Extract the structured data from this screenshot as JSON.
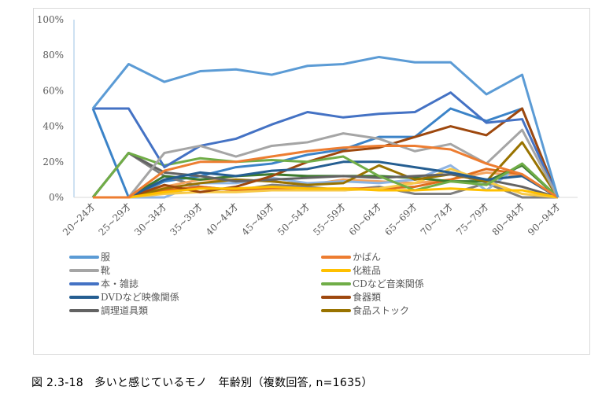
{
  "caption": "図 2.3-18　多いと感じているモノ　年齢別（複数回答, n=1635）",
  "chart_data": {
    "type": "line",
    "title": "",
    "xlabel": "",
    "ylabel": "",
    "ylim": [
      0,
      100
    ],
    "yticks": [
      "0%",
      "20%",
      "40%",
      "60%",
      "80%",
      "100%"
    ],
    "grid": false,
    "legend_position": "bottom",
    "categories": [
      "20~24才",
      "25~29才",
      "30~34才",
      "35~39才",
      "40~44才",
      "45~49才",
      "50~54才",
      "55~59才",
      "60~64才",
      "65~69才",
      "70~74才",
      "75~79才",
      "80~84才",
      "90~94才"
    ],
    "series": [
      {
        "name": "服",
        "color": "#5B9BD5",
        "in_legend": true,
        "values": [
          50,
          75,
          65,
          71,
          72,
          69,
          74,
          75,
          79,
          76,
          76,
          58,
          69,
          0
        ]
      },
      {
        "name": "かばん",
        "color": "#ED7D31",
        "in_legend": true,
        "values": [
          0,
          0,
          15,
          20,
          20,
          23,
          26,
          28,
          29,
          29,
          27,
          19,
          13,
          0
        ]
      },
      {
        "name": "靴",
        "color": "#A5A5A5",
        "in_legend": true,
        "values": [
          0,
          0,
          25,
          29,
          23,
          29,
          31,
          36,
          33,
          26,
          30,
          19,
          38,
          0
        ]
      },
      {
        "name": "化粧品",
        "color": "#FFC000",
        "in_legend": true,
        "values": [
          0,
          0,
          3,
          5,
          5,
          6,
          5,
          5,
          4,
          4,
          5,
          4,
          4,
          0
        ]
      },
      {
        "name": "本・雑誌",
        "color": "#4472C4",
        "in_legend": true,
        "values": [
          50,
          50,
          17,
          29,
          33,
          41,
          48,
          45,
          47,
          48,
          59,
          42,
          44,
          0
        ]
      },
      {
        "name": "CDなど音楽関係",
        "color": "#70AD47",
        "in_legend": true,
        "values": [
          0,
          25,
          18,
          22,
          20,
          21,
          20,
          23,
          12,
          4,
          9,
          7,
          19,
          0
        ]
      },
      {
        "name": "DVDなど映像関係",
        "color": "#255E91",
        "in_legend": true,
        "values": [
          0,
          0,
          10,
          14,
          12,
          15,
          16,
          20,
          20,
          17,
          14,
          10,
          12,
          0
        ]
      },
      {
        "name": "食器類",
        "color": "#9E480E",
        "in_legend": true,
        "values": [
          0,
          0,
          7,
          3,
          6,
          12,
          20,
          26,
          28,
          34,
          40,
          35,
          50,
          0
        ]
      },
      {
        "name": "調理道具類",
        "color": "#636363",
        "in_legend": true,
        "values": [
          0,
          25,
          14,
          12,
          9,
          10,
          11,
          12,
          11,
          12,
          13,
          10,
          6,
          0
        ]
      },
      {
        "name": "食品ストック",
        "color": "#997300",
        "in_legend": true,
        "values": [
          0,
          0,
          5,
          8,
          10,
          9,
          7,
          8,
          18,
          10,
          13,
          9,
          31,
          0
        ]
      },
      {
        "name": "",
        "color": "#3B83C8",
        "in_legend": false,
        "values": [
          50,
          0,
          9,
          12,
          17,
          19,
          24,
          27,
          34,
          34,
          50,
          43,
          50,
          0
        ]
      },
      {
        "name": "",
        "color": "#7F7F7F",
        "in_legend": false,
        "values": [
          0,
          25,
          12,
          6,
          4,
          7,
          6,
          4,
          6,
          2,
          2,
          8,
          0,
          0
        ]
      },
      {
        "name": "",
        "color": "#F4A460",
        "in_legend": false,
        "values": [
          0,
          0,
          6,
          10,
          10,
          9,
          7,
          10,
          9,
          8,
          10,
          14,
          12,
          0
        ]
      },
      {
        "name": "",
        "color": "#8FB4E3",
        "in_legend": false,
        "values": [
          0,
          0,
          0,
          8,
          8,
          11,
          8,
          9,
          8,
          10,
          18,
          4,
          19,
          0
        ]
      },
      {
        "name": "",
        "color": "#E06C1C",
        "in_legend": false,
        "values": [
          0,
          0,
          4,
          6,
          4,
          5,
          4,
          5,
          5,
          6,
          10,
          16,
          13,
          0
        ]
      },
      {
        "name": "",
        "color": "#F7C948",
        "in_legend": false,
        "values": [
          0,
          0,
          2,
          3,
          3,
          4,
          4,
          4,
          5,
          8,
          16,
          9,
          2,
          0
        ]
      },
      {
        "name": "",
        "color": "#3C7A2E",
        "in_legend": false,
        "values": [
          0,
          0,
          12,
          10,
          12,
          13,
          12,
          12,
          12,
          11,
          9,
          9,
          18,
          0
        ]
      }
    ]
  }
}
